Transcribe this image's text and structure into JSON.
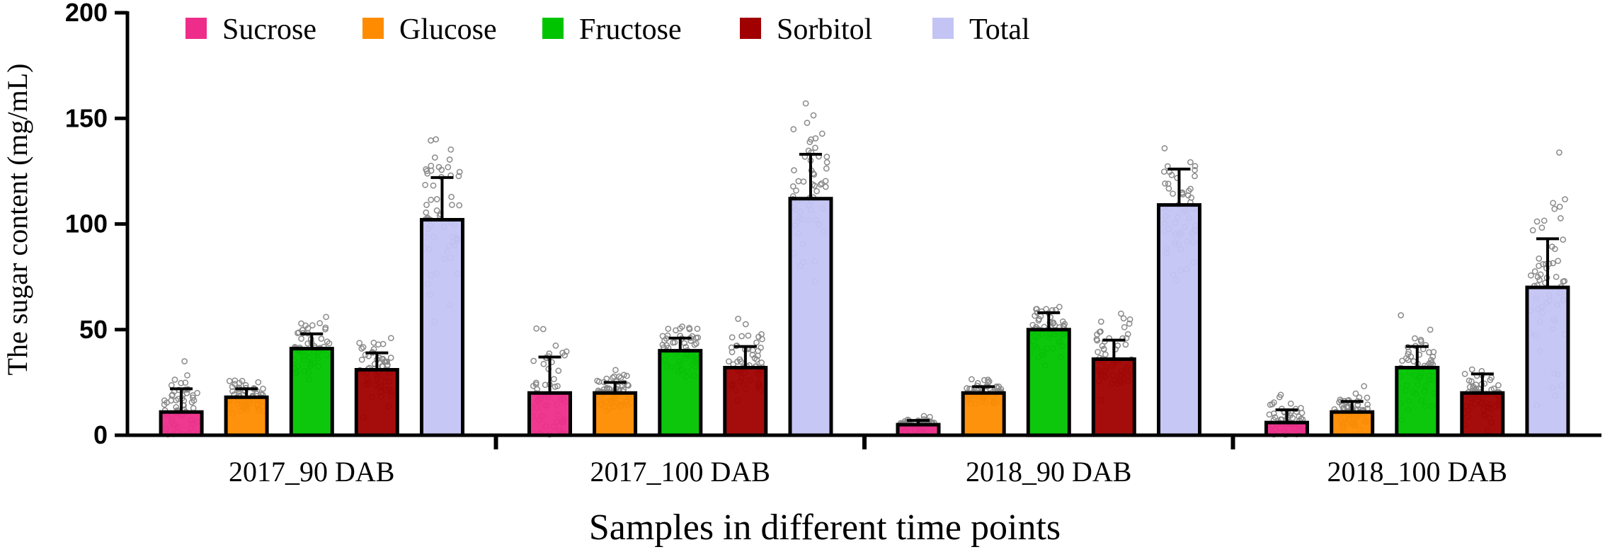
{
  "chart_data": {
    "type": "bar",
    "title": "",
    "xlabel": "Samples in different time points",
    "ylabel": "The sugar content (mg/mL)",
    "ylim": [
      0,
      200
    ],
    "yticks": [
      "0",
      "50",
      "100",
      "150",
      "200"
    ],
    "categories": [
      "2017_90 DAB",
      "2017_100 DAB",
      "2018_90 DAB",
      "2018_100 DAB"
    ],
    "legend_position": "top-left",
    "series": [
      {
        "name": "Sucrose",
        "color": "#ee2d8a",
        "values": [
          11,
          20,
          5,
          6
        ],
        "errors": [
          11,
          17,
          2,
          6
        ]
      },
      {
        "name": "Glucose",
        "color": "#ff8c00",
        "values": [
          18,
          20,
          20,
          11
        ],
        "errors": [
          4,
          5,
          3,
          5
        ]
      },
      {
        "name": "Fructose",
        "color": "#00c400",
        "values": [
          41,
          40,
          50,
          32
        ],
        "errors": [
          7,
          6,
          8,
          10
        ]
      },
      {
        "name": "Sorbitol",
        "color": "#a00000",
        "values": [
          31,
          32,
          36,
          20
        ],
        "errors": [
          8,
          10,
          9,
          9
        ]
      },
      {
        "name": "Total",
        "color": "#c4c4f4",
        "values": [
          102,
          112,
          109,
          70
        ],
        "errors": [
          20,
          21,
          17,
          23
        ]
      }
    ]
  }
}
